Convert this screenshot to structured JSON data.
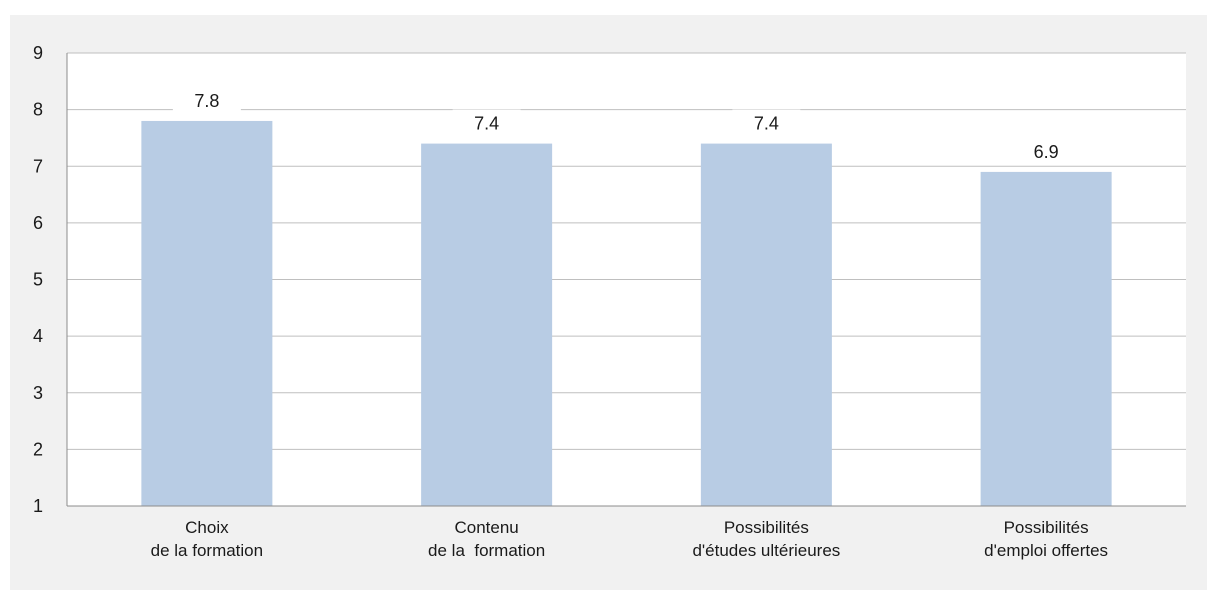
{
  "chart_data": {
    "type": "bar",
    "categories": [
      [
        "Choix",
        "de la formation"
      ],
      [
        "Contenu",
        "de la  formation"
      ],
      [
        "Possibilités",
        "d'études ultérieures"
      ],
      [
        "Possibilités",
        "d'emploi offertes"
      ]
    ],
    "values": [
      7.8,
      7.4,
      7.4,
      6.9
    ],
    "value_labels": [
      "7.8",
      "7.4",
      "7.4",
      "6.9"
    ],
    "ylim": [
      1,
      9
    ],
    "yticks": [
      1,
      2,
      3,
      4,
      5,
      6,
      7,
      8,
      9
    ],
    "grid": true,
    "bar_color": "#b8cce4",
    "grid_color": "#bfbfbf",
    "background_color": "#f1f1f1",
    "plot_background_color": "#ffffff"
  }
}
